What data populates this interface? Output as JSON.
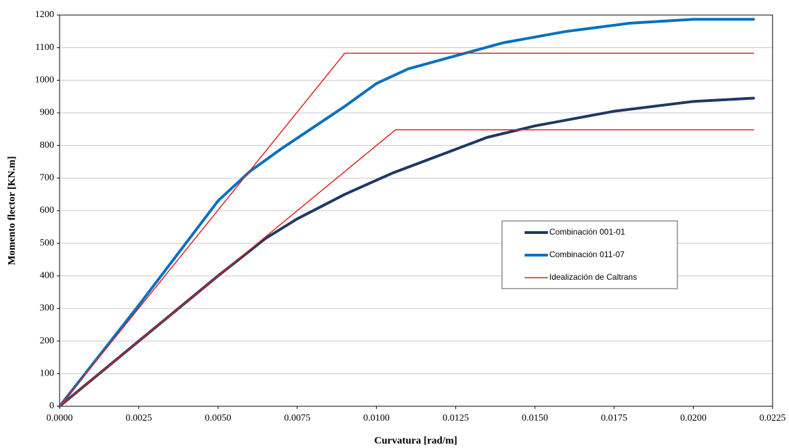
{
  "chart_data": {
    "type": "line",
    "x_label": "Curvatura [rad/m]",
    "y_label": "Momento flector [KN.m]",
    "xlim": [
      0,
      0.0225
    ],
    "ylim": [
      0,
      1200
    ],
    "xticks": [
      {
        "value": 0,
        "label": "0.0000"
      },
      {
        "value": 0.0025,
        "label": "0.0025"
      },
      {
        "value": 0.005,
        "label": "0.0050"
      },
      {
        "value": 0.0075,
        "label": "0.0075"
      },
      {
        "value": 0.01,
        "label": "0.0100"
      },
      {
        "value": 0.0125,
        "label": "0.0125"
      },
      {
        "value": 0.015,
        "label": "0.0150"
      },
      {
        "value": 0.0175,
        "label": "0.0175"
      },
      {
        "value": 0.02,
        "label": "0.0200"
      },
      {
        "value": 0.0225,
        "label": "0.0225"
      }
    ],
    "yticks": [
      0,
      100,
      200,
      300,
      400,
      500,
      600,
      700,
      800,
      900,
      1000,
      1100,
      1200
    ],
    "grid": true,
    "series": [
      {
        "name": "Combinación 001-01",
        "color": "#1f3864",
        "width": 4,
        "x": [
          0,
          0.0025,
          0.005,
          0.0065,
          0.0075,
          0.009,
          0.0105,
          0.012,
          0.0135,
          0.015,
          0.0175,
          0.02,
          0.0219
        ],
        "values": [
          0,
          200,
          400,
          515,
          575,
          650,
          715,
          770,
          825,
          860,
          905,
          935,
          945
        ]
      },
      {
        "name": "Combinación 011-07",
        "color": "#0070c0",
        "width": 4,
        "x": [
          0,
          0.0025,
          0.005,
          0.006,
          0.007,
          0.008,
          0.009,
          0.01,
          0.011,
          0.0125,
          0.014,
          0.016,
          0.018,
          0.02,
          0.0219
        ],
        "values": [
          0,
          310,
          630,
          720,
          790,
          855,
          920,
          990,
          1035,
          1075,
          1115,
          1150,
          1175,
          1187,
          1187
        ]
      },
      {
        "name": "Idealización de Caltrans",
        "color": "#e02020",
        "width": 1.5,
        "x": [
          0,
          0.009,
          0.0219,
          null,
          0,
          0.0106,
          0.0219
        ],
        "values": [
          0,
          1083,
          1083,
          null,
          0,
          848,
          848
        ]
      }
    ]
  }
}
